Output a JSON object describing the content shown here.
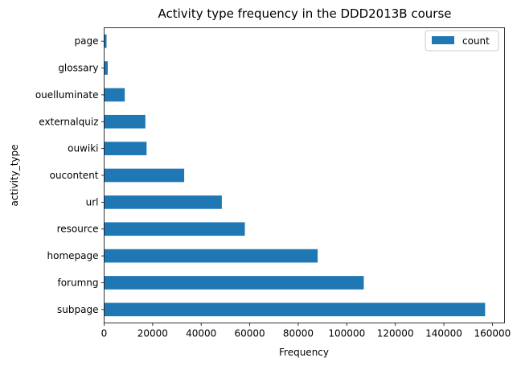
{
  "chart_data": {
    "type": "bar",
    "orientation": "horizontal",
    "title": "Activity type frequency in the DDD2013B course",
    "xlabel": "Frequency",
    "ylabel": "activity_type",
    "xlim": [
      0,
      165000
    ],
    "xticks": [
      0,
      20000,
      40000,
      60000,
      80000,
      100000,
      120000,
      140000,
      160000
    ],
    "categories": [
      "subpage",
      "forumng",
      "homepage",
      "resource",
      "url",
      "oucontent",
      "ouwiki",
      "externalquiz",
      "ouelluminate",
      "glossary",
      "page"
    ],
    "series": [
      {
        "name": "count",
        "color": "#1f77b4",
        "values": [
          157000,
          107000,
          88000,
          58000,
          48500,
          33000,
          17500,
          17000,
          8500,
          1500,
          1000
        ]
      }
    ],
    "grid": false,
    "legend_position": "top-right"
  }
}
